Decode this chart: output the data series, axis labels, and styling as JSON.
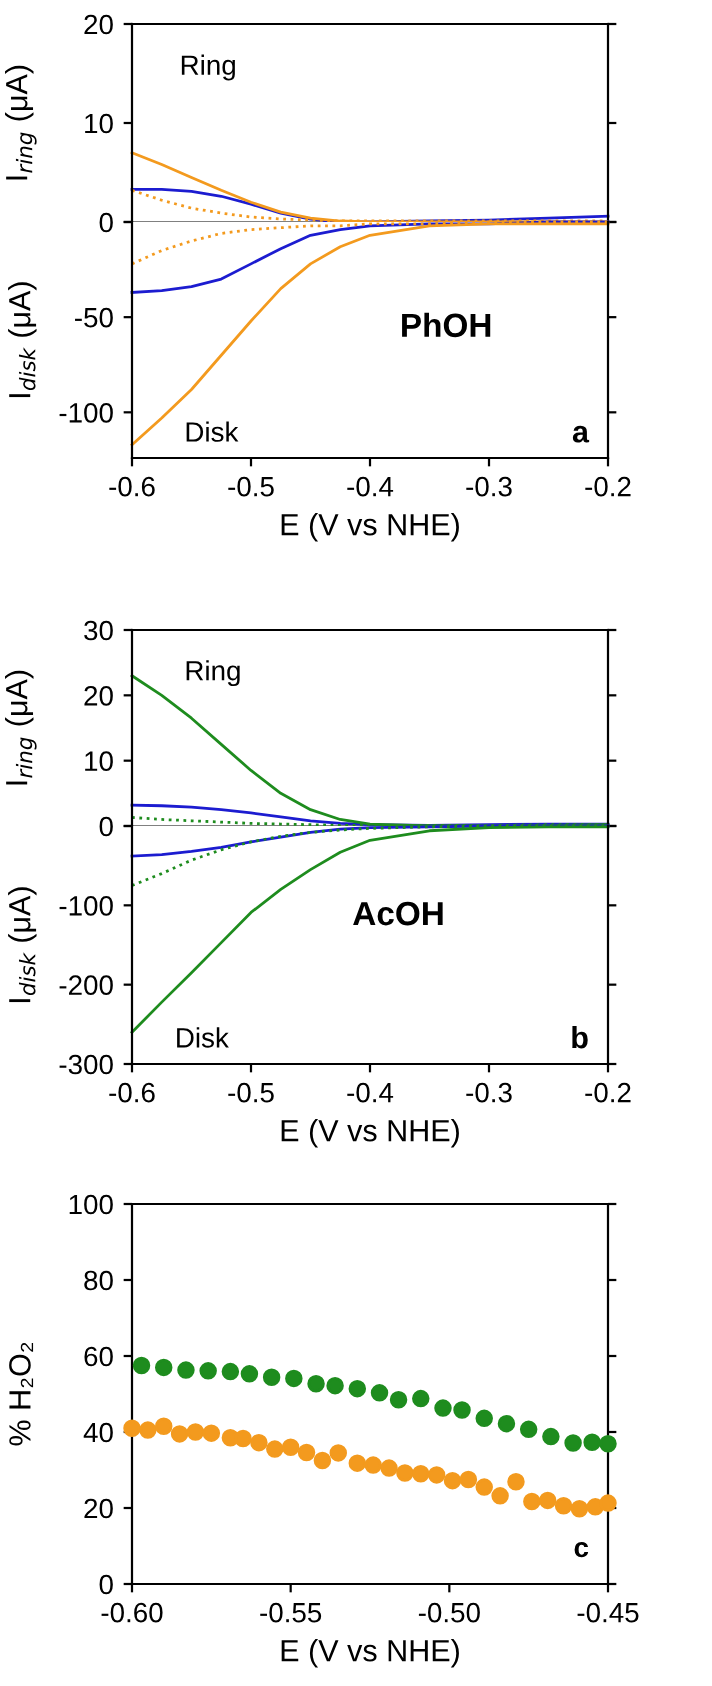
{
  "chart_data": [
    {
      "type": "line",
      "ylabel": "I$_{ring}$ (μA)",
      "xlim": [
        -0.6,
        -0.2
      ],
      "ylim": [
        0,
        20
      ],
      "yticks": [
        0,
        10,
        20
      ],
      "tick_labels": "y",
      "annotations": [
        "Ring"
      ],
      "x": [
        -0.6,
        -0.575,
        -0.55,
        -0.525,
        -0.5,
        -0.475,
        -0.45,
        -0.425,
        -0.4,
        -0.35,
        -0.3,
        -0.25,
        -0.2
      ],
      "series": [
        {
          "color": "#f39a1e",
          "values": [
            7,
            5.8,
            4.5,
            3.2,
            2.0,
            1.0,
            0.4,
            0.1,
            0,
            0,
            0,
            0,
            0
          ]
        },
        {
          "color": "#f39a1e",
          "line_style": "dotted",
          "values": [
            3.2,
            2.2,
            1.4,
            0.9,
            0.5,
            0.3,
            0.2,
            0.1,
            0.1,
            0.1,
            0.1,
            0.1,
            0.1
          ]
        },
        {
          "color": "#1c1cd0",
          "values": [
            3.3,
            3.3,
            3.1,
            2.6,
            1.8,
            0.9,
            0.3,
            0,
            0,
            0.1,
            0.2,
            0.4,
            0.6
          ]
        }
      ]
    },
    {
      "type": "line",
      "xlabel": "E (V vs NHE)",
      "ylabel": "I$_{disk}$ (μA)",
      "xlim": [
        -0.6,
        -0.2
      ],
      "ylim": [
        -124,
        0
      ],
      "xticks": [
        -0.6,
        -0.5,
        -0.4,
        -0.3,
        -0.2
      ],
      "yticks": [
        {
          "value": 0,
          "label": null
        },
        -50,
        -100
      ],
      "annotations": [
        "Disk",
        "PhOH",
        "a"
      ],
      "x": [
        -0.6,
        -0.575,
        -0.55,
        -0.525,
        -0.5,
        -0.475,
        -0.45,
        -0.425,
        -0.4,
        -0.35,
        -0.3,
        -0.25,
        -0.2
      ],
      "series": [
        {
          "color": "#f39a1e",
          "values": [
            -117,
            -103,
            -88,
            -70,
            -52,
            -35,
            -22,
            -13,
            -7,
            -2,
            -1,
            -1,
            -1
          ]
        },
        {
          "color": "#f39a1e",
          "line_style": "dotted",
          "values": [
            -22,
            -15,
            -10,
            -6,
            -4,
            -3,
            -2,
            -2,
            -1,
            -1,
            0,
            0,
            0
          ]
        },
        {
          "color": "#1c1cd0",
          "values": [
            -37,
            -36,
            -34,
            -30,
            -22,
            -14,
            -7,
            -4,
            -2,
            -1,
            -1,
            0,
            0
          ]
        }
      ]
    },
    {
      "type": "line",
      "ylabel": "I$_{ring}$ (μA)",
      "xlim": [
        -0.6,
        -0.2
      ],
      "ylim": [
        0,
        30
      ],
      "yticks": [
        0,
        10,
        20,
        30
      ],
      "tick_labels": "y",
      "annotations": [
        "Ring"
      ],
      "x": [
        -0.6,
        -0.575,
        -0.55,
        -0.525,
        -0.5,
        -0.475,
        -0.45,
        -0.425,
        -0.4,
        -0.35,
        -0.3,
        -0.25,
        -0.2
      ],
      "series": [
        {
          "color": "#1e8c1e",
          "values": [
            23,
            20,
            16.5,
            12.5,
            8.5,
            5,
            2.5,
            1,
            0.3,
            0,
            0,
            0.1,
            0.2
          ]
        },
        {
          "color": "#1e8c1e",
          "line_style": "dotted",
          "values": [
            1.3,
            1.0,
            0.8,
            0.6,
            0.4,
            0.3,
            0.2,
            0.1,
            0.1,
            0.1,
            0.1,
            0.2,
            0.2
          ]
        },
        {
          "color": "#1c1cd0",
          "values": [
            3.2,
            3.1,
            2.9,
            2.5,
            2.0,
            1.4,
            0.8,
            0.4,
            0.2,
            0.1,
            0.2,
            0.3,
            0.3
          ]
        }
      ]
    },
    {
      "type": "line",
      "xlabel": "E (V vs NHE)",
      "ylabel": "I$_{disk}$ (μA)",
      "xlim": [
        -0.6,
        -0.2
      ],
      "ylim": [
        -300,
        0
      ],
      "xticks": [
        -0.6,
        -0.5,
        -0.4,
        -0.3,
        -0.2
      ],
      "yticks": [
        {
          "value": 0,
          "label": null
        },
        -100,
        -200,
        -300
      ],
      "annotations": [
        "Disk",
        "AcOH",
        "b"
      ],
      "x": [
        -0.6,
        -0.575,
        -0.55,
        -0.525,
        -0.5,
        -0.475,
        -0.45,
        -0.425,
        -0.4,
        -0.35,
        -0.3,
        -0.25,
        -0.2
      ],
      "series": [
        {
          "color": "#1e8c1e",
          "values": [
            -260,
            -222,
            -185,
            -147,
            -109,
            -80,
            -55,
            -33,
            -18,
            -6,
            -2,
            -1,
            -1
          ]
        },
        {
          "color": "#1e8c1e",
          "line_style": "dotted",
          "values": [
            -75,
            -60,
            -43,
            -30,
            -20,
            -13,
            -8,
            -5,
            -3,
            -1,
            0,
            0,
            0
          ]
        },
        {
          "color": "#1c1cd0",
          "values": [
            -38,
            -36,
            -32,
            -27,
            -20,
            -14,
            -8,
            -4,
            -2,
            -1,
            0,
            0,
            0
          ]
        }
      ]
    },
    {
      "type": "scatter",
      "marker": "circle",
      "xlabel": "E (V vs NHE)",
      "ylabel": "% H₂O₂",
      "xlim": [
        -0.6,
        -0.45
      ],
      "ylim": [
        0,
        100
      ],
      "xticks": [
        {
          "value": -0.6,
          "label": "-0.60"
        },
        {
          "value": -0.55,
          "label": "-0.55"
        },
        {
          "value": -0.5,
          "label": "-0.50"
        },
        {
          "value": -0.45,
          "label": "-0.45"
        }
      ],
      "yticks": [
        0,
        20,
        40,
        60,
        80,
        100
      ],
      "annotations": [
        "c"
      ],
      "series": [
        {
          "color": "#1e8c1e",
          "x": [
            -0.597,
            -0.59,
            -0.583,
            -0.576,
            -0.569,
            -0.563,
            -0.556,
            -0.549,
            -0.542,
            -0.536,
            -0.529,
            -0.522,
            -0.516,
            -0.509,
            -0.502,
            -0.496,
            -0.489,
            -0.482,
            -0.475,
            -0.468,
            -0.461,
            -0.455,
            -0.45
          ],
          "values": [
            57.5,
            57,
            56.3,
            56.1,
            55.9,
            55.3,
            54.4,
            54.1,
            52.7,
            52.2,
            51.4,
            50.3,
            48.5,
            48.8,
            46.3,
            45.8,
            43.6,
            42.2,
            40.7,
            38.8,
            37.1,
            37.3,
            36.9
          ]
        },
        {
          "color": "#f39a1e",
          "x": [
            -0.6,
            -0.595,
            -0.59,
            -0.585,
            -0.58,
            -0.575,
            -0.569,
            -0.565,
            -0.56,
            -0.555,
            -0.55,
            -0.545,
            -0.54,
            -0.535,
            -0.529,
            -0.524,
            -0.519,
            -0.514,
            -0.509,
            -0.504,
            -0.499,
            -0.494,
            -0.489,
            -0.484,
            -0.479,
            -0.474,
            -0.469,
            -0.464,
            -0.459,
            -0.454,
            -0.45
          ],
          "values": [
            41,
            40.5,
            41.5,
            39.5,
            40,
            39.7,
            38.5,
            38.3,
            37.2,
            35.5,
            36,
            34.6,
            32.5,
            34.5,
            31.8,
            31.3,
            30.5,
            29.2,
            29,
            28.7,
            27.2,
            27.5,
            25.5,
            23.2,
            26.9,
            21.7,
            22,
            20.6,
            19.8,
            20.3,
            21.3
          ]
        }
      ]
    }
  ]
}
